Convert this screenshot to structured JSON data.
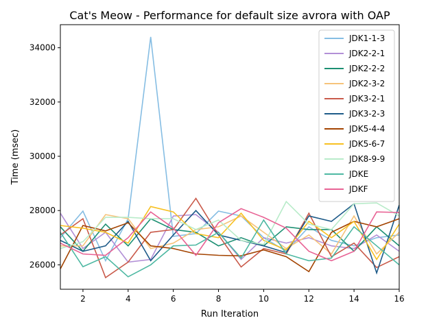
{
  "chart_data": {
    "type": "line",
    "title": "Cat's Meow - Performance for default size avrora with OAP",
    "xlabel": "Run Iteration",
    "ylabel": "Time (msec)",
    "xlim": [
      1,
      16
    ],
    "ylim": [
      25100,
      34850
    ],
    "xticks": [
      2,
      4,
      6,
      8,
      10,
      12,
      14,
      16
    ],
    "yticks": [
      26000,
      28000,
      30000,
      32000,
      34000
    ],
    "grid": false,
    "legend_position": "top-right",
    "x": [
      1,
      2,
      3,
      4,
      5,
      6,
      7,
      8,
      9,
      10,
      11,
      12,
      13,
      14,
      15,
      16
    ],
    "series": [
      {
        "name": "JDK1-1-3",
        "color": "#85bde3",
        "values": [
          27000,
          27980,
          26150,
          27700,
          34400,
          27050,
          27150,
          27980,
          27800,
          27000,
          26500,
          27400,
          26900,
          26700,
          27000,
          27100
        ]
      },
      {
        "name": "JDK2-2-1",
        "color": "#b28fd6",
        "values": [
          27900,
          26600,
          27200,
          26100,
          26200,
          27800,
          27850,
          27200,
          26200,
          27000,
          26800,
          27000,
          26700,
          26600,
          27100,
          26500
        ]
      },
      {
        "name": "JDK2-2-2",
        "color": "#1c8f72",
        "values": [
          27400,
          26500,
          27500,
          26700,
          27700,
          27300,
          27200,
          26700,
          27000,
          26700,
          27400,
          27300,
          27300,
          26500,
          27400,
          26700
        ]
      },
      {
        "name": "JDK2-3-2",
        "color": "#f6c37a",
        "values": [
          26700,
          26700,
          27850,
          27700,
          26600,
          26800,
          27300,
          27400,
          27800,
          27200,
          26600,
          27100,
          26400,
          27800,
          26400,
          27200
        ]
      },
      {
        "name": "JDK3-2-1",
        "color": "#c95a4a",
        "values": [
          27100,
          27700,
          25530,
          26100,
          27200,
          27300,
          28450,
          27100,
          25920,
          26600,
          26400,
          27900,
          26300,
          26800,
          25900,
          26300
        ]
      },
      {
        "name": "JDK3-2-3",
        "color": "#1d5a88",
        "values": [
          26900,
          26500,
          26700,
          27600,
          26150,
          27100,
          28000,
          27100,
          26900,
          26700,
          26450,
          27800,
          27600,
          28250,
          25700,
          28200
        ]
      },
      {
        "name": "JDK5-4-4",
        "color": "#a34300",
        "values": [
          25850,
          27450,
          27250,
          27550,
          26700,
          26600,
          26400,
          26350,
          26330,
          26550,
          26300,
          25750,
          27200,
          27600,
          27400,
          27700
        ]
      },
      {
        "name": "JDK5-6-7",
        "color": "#f7c020",
        "values": [
          27450,
          27350,
          27200,
          26800,
          28150,
          27950,
          27150,
          27000,
          27900,
          26900,
          26550,
          27600,
          27000,
          27600,
          26200,
          27500
        ]
      },
      {
        "name": "JDK8-9-9",
        "color": "#b8ebc9",
        "values": [
          26600,
          26850,
          27750,
          27750,
          27700,
          27700,
          27300,
          27650,
          26900,
          26750,
          28330,
          27500,
          27300,
          28250,
          28280,
          27800
        ]
      },
      {
        "name": "JDKE",
        "color": "#4db8a2",
        "values": [
          27200,
          25930,
          26300,
          25560,
          26000,
          26700,
          26730,
          27200,
          26250,
          27650,
          26400,
          26150,
          26250,
          27400,
          26700,
          26000
        ]
      },
      {
        "name": "JDKF",
        "color": "#e86294",
        "values": [
          26800,
          26400,
          26350,
          27000,
          27950,
          27350,
          26350,
          27550,
          28070,
          27750,
          27350,
          26500,
          26150,
          26500,
          27950,
          27930
        ]
      }
    ]
  }
}
